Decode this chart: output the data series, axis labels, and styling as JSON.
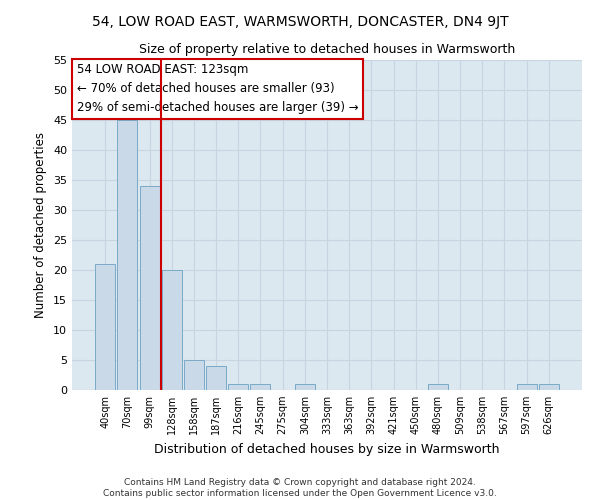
{
  "title1": "54, LOW ROAD EAST, WARMSWORTH, DONCASTER, DN4 9JT",
  "title2": "Size of property relative to detached houses in Warmsworth",
  "xlabel": "Distribution of detached houses by size in Warmsworth",
  "ylabel": "Number of detached properties",
  "categories": [
    "40sqm",
    "70sqm",
    "99sqm",
    "128sqm",
    "158sqm",
    "187sqm",
    "216sqm",
    "245sqm",
    "275sqm",
    "304sqm",
    "333sqm",
    "363sqm",
    "392sqm",
    "421sqm",
    "450sqm",
    "480sqm",
    "509sqm",
    "538sqm",
    "567sqm",
    "597sqm",
    "626sqm"
  ],
  "values": [
    21,
    45,
    34,
    20,
    5,
    4,
    1,
    1,
    0,
    1,
    0,
    0,
    0,
    0,
    0,
    1,
    0,
    0,
    0,
    1,
    1
  ],
  "bar_color": "#c9d9e8",
  "bar_edge_color": "#7aaac8",
  "vline_x": 3,
  "vline_color": "#cc0000",
  "annotation_text": "54 LOW ROAD EAST: 123sqm\n← 70% of detached houses are smaller (93)\n29% of semi-detached houses are larger (39) →",
  "annotation_box_color": "#ffffff",
  "annotation_box_edge": "#cc0000",
  "ylim": [
    0,
    55
  ],
  "yticks": [
    0,
    5,
    10,
    15,
    20,
    25,
    30,
    35,
    40,
    45,
    50,
    55
  ],
  "grid_color": "#c8d4e0",
  "background_color": "#dce8f0",
  "fig_bg_color": "#ffffff",
  "footer1": "Contains HM Land Registry data © Crown copyright and database right 2024.",
  "footer2": "Contains public sector information licensed under the Open Government Licence v3.0."
}
